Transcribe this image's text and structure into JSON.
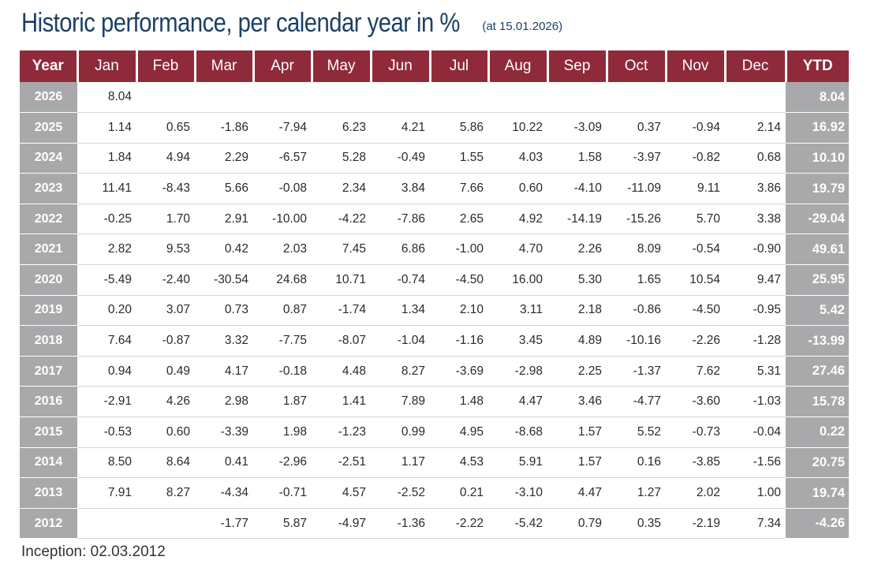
{
  "title": "Historic performance, per calendar year in %",
  "as_of": "(at 15.01.2026)",
  "columns": [
    "Year",
    "Jan",
    "Feb",
    "Mar",
    "Apr",
    "May",
    "Jun",
    "Jul",
    "Aug",
    "Sep",
    "Oct",
    "Nov",
    "Dec",
    "YTD"
  ],
  "rows": [
    {
      "year": "2026",
      "months": [
        "8.04",
        "",
        "",
        "",
        "",
        "",
        "",
        "",
        "",
        "",
        "",
        ""
      ],
      "ytd": "8.04"
    },
    {
      "year": "2025",
      "months": [
        "1.14",
        "0.65",
        "-1.86",
        "-7.94",
        "6.23",
        "4.21",
        "5.86",
        "10.22",
        "-3.09",
        "0.37",
        "-0.94",
        "2.14"
      ],
      "ytd": "16.92"
    },
    {
      "year": "2024",
      "months": [
        "1.84",
        "4.94",
        "2.29",
        "-6.57",
        "5.28",
        "-0.49",
        "1.55",
        "4.03",
        "1.58",
        "-3.97",
        "-0.82",
        "0.68"
      ],
      "ytd": "10.10"
    },
    {
      "year": "2023",
      "months": [
        "11.41",
        "-8.43",
        "5.66",
        "-0.08",
        "2.34",
        "3.84",
        "7.66",
        "0.60",
        "-4.10",
        "-11.09",
        "9.11",
        "3.86"
      ],
      "ytd": "19.79"
    },
    {
      "year": "2022",
      "months": [
        "-0.25",
        "1.70",
        "2.91",
        "-10.00",
        "-4.22",
        "-7.86",
        "2.65",
        "4.92",
        "-14.19",
        "-15.26",
        "5.70",
        "3.38"
      ],
      "ytd": "-29.04"
    },
    {
      "year": "2021",
      "months": [
        "2.82",
        "9.53",
        "0.42",
        "2.03",
        "7.45",
        "6.86",
        "-1.00",
        "4.70",
        "2.26",
        "8.09",
        "-0.54",
        "-0.90"
      ],
      "ytd": "49.61"
    },
    {
      "year": "2020",
      "months": [
        "-5.49",
        "-2.40",
        "-30.54",
        "24.68",
        "10.71",
        "-0.74",
        "-4.50",
        "16.00",
        "5.30",
        "1.65",
        "10.54",
        "9.47"
      ],
      "ytd": "25.95"
    },
    {
      "year": "2019",
      "months": [
        "0.20",
        "3.07",
        "0.73",
        "0.87",
        "-1.74",
        "1.34",
        "2.10",
        "3.11",
        "2.18",
        "-0.86",
        "-4.50",
        "-0.95"
      ],
      "ytd": "5.42"
    },
    {
      "year": "2018",
      "months": [
        "7.64",
        "-0.87",
        "3.32",
        "-7.75",
        "-8.07",
        "-1.04",
        "-1.16",
        "3.45",
        "4.89",
        "-10.16",
        "-2.26",
        "-1.28"
      ],
      "ytd": "-13.99"
    },
    {
      "year": "2017",
      "months": [
        "0.94",
        "0.49",
        "4.17",
        "-0.18",
        "4.48",
        "8.27",
        "-3.69",
        "-2.98",
        "2.25",
        "-1.37",
        "7.62",
        "5.31"
      ],
      "ytd": "27.46"
    },
    {
      "year": "2016",
      "months": [
        "-2.91",
        "4.26",
        "2.98",
        "1.87",
        "1.41",
        "7.89",
        "1.48",
        "4.47",
        "3.46",
        "-4.77",
        "-3.60",
        "-1.03"
      ],
      "ytd": "15.78"
    },
    {
      "year": "2015",
      "months": [
        "-0.53",
        "0.60",
        "-3.39",
        "1.98",
        "-1.23",
        "0.99",
        "4.95",
        "-8.68",
        "1.57",
        "5.52",
        "-0.73",
        "-0.04"
      ],
      "ytd": "0.22"
    },
    {
      "year": "2014",
      "months": [
        "8.50",
        "8.64",
        "0.41",
        "-2.96",
        "-2.51",
        "1.17",
        "4.53",
        "5.91",
        "1.57",
        "0.16",
        "-3.85",
        "-1.56"
      ],
      "ytd": "20.75"
    },
    {
      "year": "2013",
      "months": [
        "7.91",
        "8.27",
        "-4.34",
        "-0.71",
        "4.57",
        "-2.52",
        "0.21",
        "-3.10",
        "4.47",
        "1.27",
        "2.02",
        "1.00"
      ],
      "ytd": "19.74"
    },
    {
      "year": "2012",
      "months": [
        "",
        "",
        "-1.77",
        "5.87",
        "-4.97",
        "-1.36",
        "-2.22",
        "-5.42",
        "0.79",
        "0.35",
        "-2.19",
        "7.34"
      ],
      "ytd": "-4.26"
    }
  ],
  "footer": "Inception: 02.03.2012",
  "colors": {
    "header_bg": "#8f2a3a",
    "side_bg": "#a9a9ab",
    "title": "#1c3f66"
  }
}
